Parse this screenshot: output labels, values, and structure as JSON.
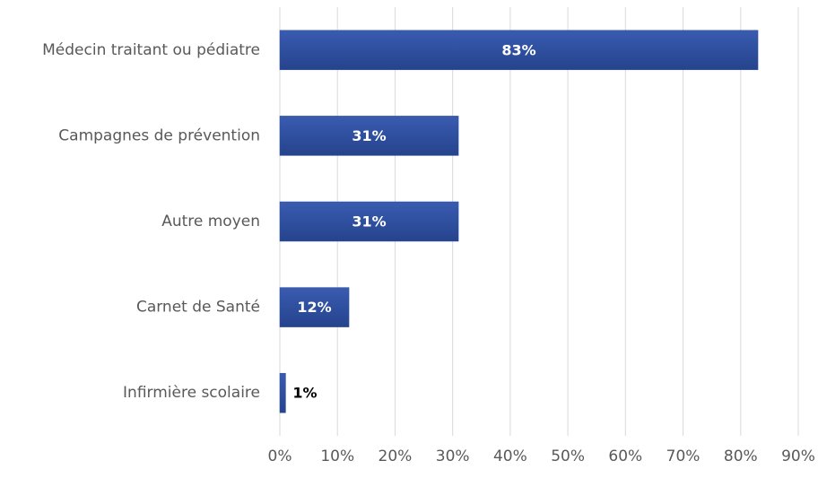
{
  "chart_data": {
    "type": "bar",
    "orientation": "horizontal",
    "categories": [
      "Médecin traitant ou pédiatre",
      "Campagnes de prévention",
      "Autre moyen",
      "Carnet de Santé",
      "Infirmière scolaire"
    ],
    "values": [
      83,
      31,
      31,
      12,
      1
    ],
    "value_labels": [
      "83%",
      "31%",
      "31%",
      "12%",
      "1%"
    ],
    "color": "#2f4f9f",
    "xlim": [
      0,
      90
    ],
    "xticks": [
      {
        "value": 0,
        "label": "0%"
      },
      {
        "value": 10,
        "label": "10%"
      },
      {
        "value": 20,
        "label": "20%"
      },
      {
        "value": 30,
        "label": "30%"
      },
      {
        "value": 40,
        "label": "40%"
      },
      {
        "value": 50,
        "label": "50%"
      },
      {
        "value": 60,
        "label": "60%"
      },
      {
        "value": 70,
        "label": "70%"
      },
      {
        "value": 80,
        "label": "80%"
      },
      {
        "value": 90,
        "label": "90%"
      }
    ],
    "grid": true
  }
}
